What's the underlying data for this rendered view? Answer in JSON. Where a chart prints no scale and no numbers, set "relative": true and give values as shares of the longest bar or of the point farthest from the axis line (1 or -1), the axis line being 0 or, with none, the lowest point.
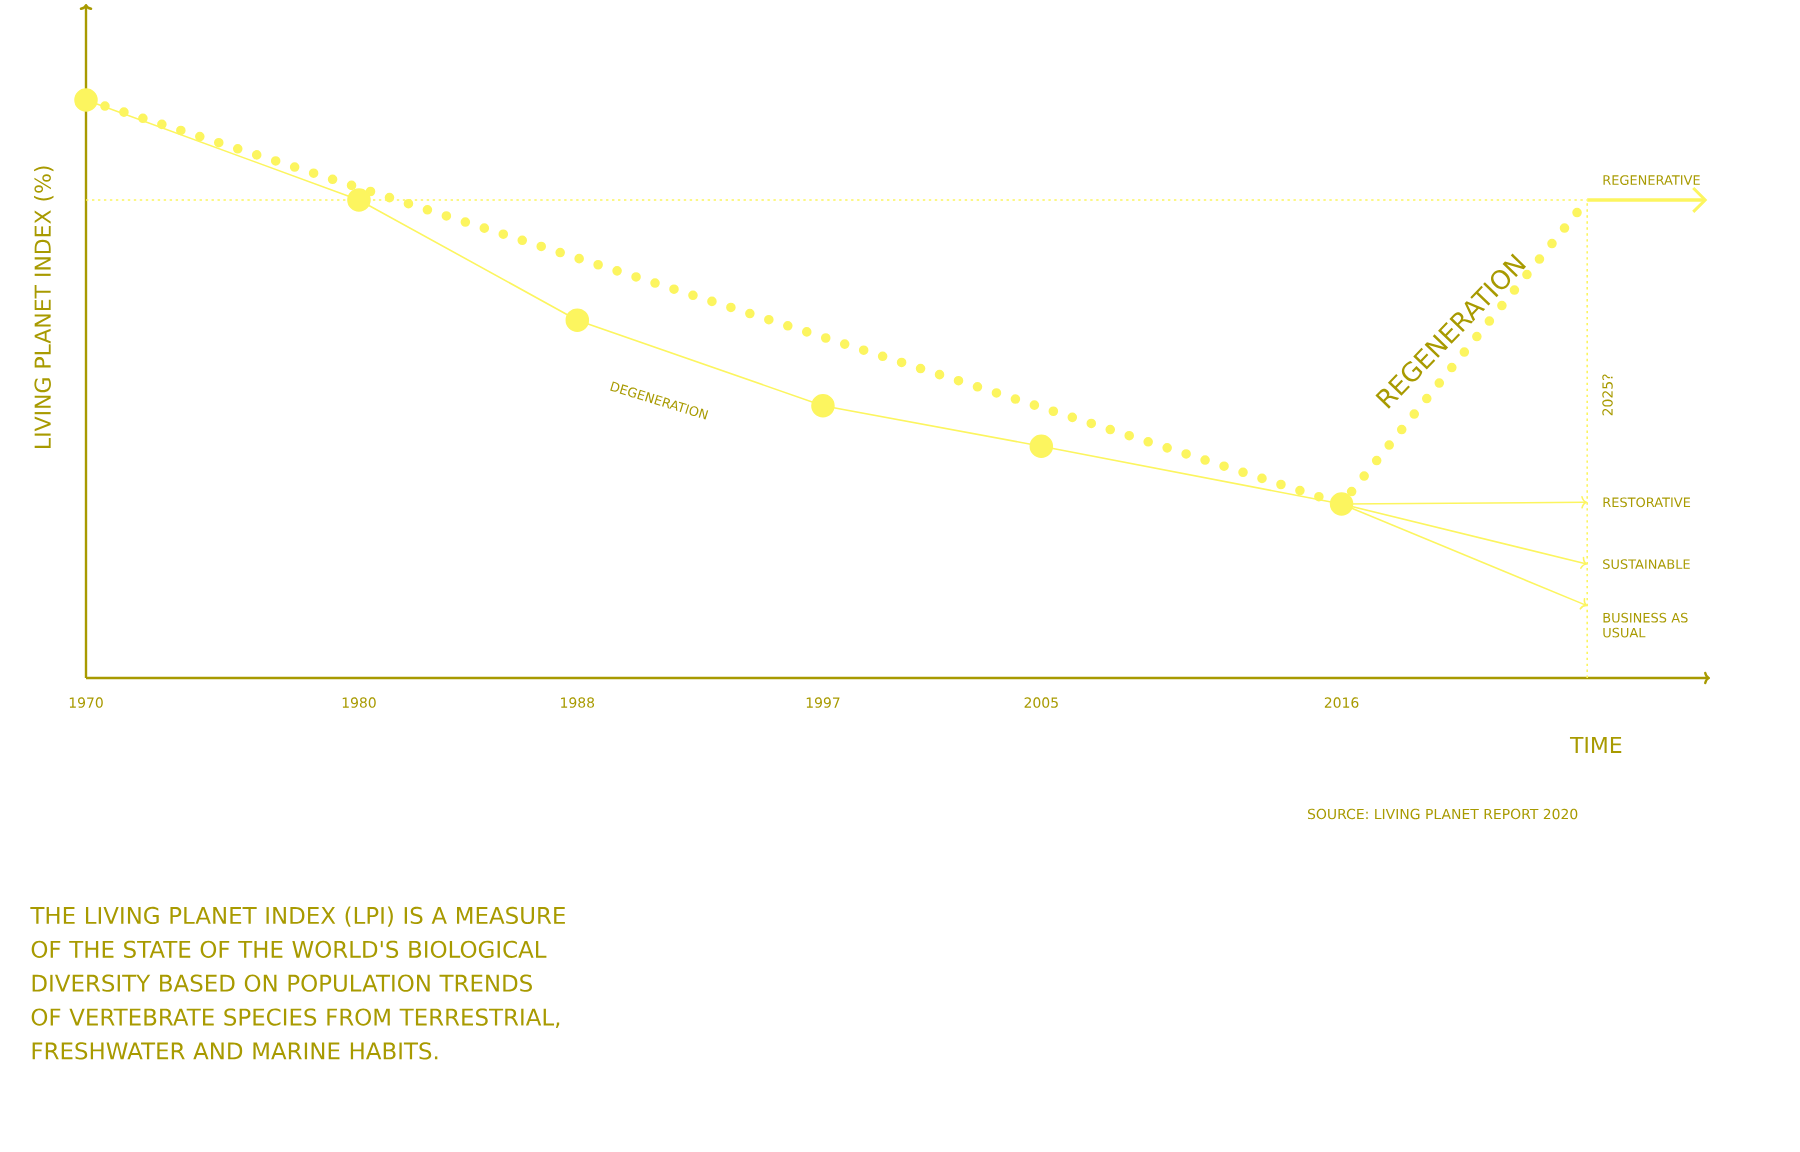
{
  "chart_data": {
    "type": "line",
    "relative": true,
    "xlabel": "TIME",
    "ylabel": "LIVING PLANET INDEX (%)",
    "xlim": [
      1970,
      2029.5
    ],
    "xticks": [
      1970,
      1980,
      1988,
      1997,
      2005,
      2016
    ],
    "series": [
      {
        "name": "DEGENERATION",
        "color": "#fcf55f",
        "x": [
          1970,
          1980,
          1988,
          1997,
          2005,
          2016
        ],
        "values": [
          1.0,
          0.827,
          0.619,
          0.471,
          0.401,
          0.301
        ],
        "marker": "circle",
        "line_style": "solid"
      },
      {
        "name": "REGENERATION",
        "color": "#fcf55f",
        "x": [
          1970,
          2016,
          2025
        ],
        "values": [
          1.0,
          0.301,
          0.827
        ],
        "marker": "none",
        "line_style": "dotted"
      },
      {
        "name": "REGENERATIVE",
        "color": "#fcf55f",
        "x": [
          2025,
          2029.4
        ],
        "values": [
          0.827,
          0.827
        ],
        "line_style": "solid"
      },
      {
        "name": "RESTORATIVE",
        "color": "#fcf55f",
        "x": [
          2016,
          2025
        ],
        "values": [
          0.301,
          0.304
        ],
        "line_style": "solid"
      },
      {
        "name": "SUSTAINABLE",
        "color": "#fcf55f",
        "x": [
          2016,
          2025
        ],
        "values": [
          0.301,
          0.197
        ],
        "line_style": "solid"
      },
      {
        "name": "BUSINESS AS USUAL",
        "color": "#fcf55f",
        "x": [
          2016,
          2025
        ],
        "values": [
          0.301,
          0.125
        ],
        "line_style": "solid"
      }
    ],
    "ref_lines": [
      {
        "axis": "x",
        "value": 2025,
        "label": "2025?",
        "color": "#fcf55f",
        "line_style": "dotted"
      },
      {
        "axis": "y",
        "value": 0.827,
        "color": "#fcf55f",
        "line_style": "dotted"
      }
    ],
    "annotations": [
      "SOURCE: LIVING PLANET REPORT 2020",
      "THE LIVING PLANET INDEX (LPI) IS A MEASURE OF THE STATE OF THE WORLD'S BIOLOGICAL DIVERSITY BASED ON POPULATION TRENDS OF VERTEBRATE SPECIES FROM TERRESTRIAL, FRESHWATER AND MARINE HABITS."
    ]
  }
}
